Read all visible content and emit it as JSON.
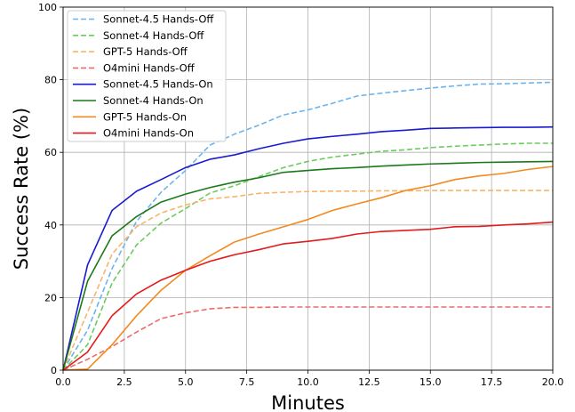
{
  "chart_data": {
    "type": "line",
    "xlabel": "Minutes",
    "ylabel": "Success Rate (%)",
    "xlim": [
      0,
      20
    ],
    "ylim": [
      0,
      100
    ],
    "xticks": [
      0,
      2.5,
      5,
      7.5,
      10,
      12.5,
      15,
      17.5,
      20
    ],
    "xtick_labels": [
      "0.0",
      "2.5",
      "5.0",
      "7.5",
      "10.0",
      "12.5",
      "15.0",
      "17.5",
      "20.0"
    ],
    "yticks": [
      0,
      20,
      40,
      60,
      80,
      100
    ],
    "ytick_labels": [
      "0",
      "20",
      "40",
      "60",
      "80",
      "100"
    ],
    "grid": true,
    "legend_position": "top-left",
    "x": [
      0,
      1,
      2,
      3,
      4,
      5,
      6,
      7,
      8,
      9,
      10,
      11,
      12,
      13,
      14,
      15,
      16,
      17,
      18,
      19,
      20
    ],
    "series": [
      {
        "name": "Sonnet-4.5 Hands-Off",
        "color": "#6cb4ee",
        "dash": true,
        "values": [
          0,
          11,
          28,
          41,
          49,
          55,
          62,
          65,
          67.5,
          70.3,
          71.7,
          73.5,
          75.5,
          76.3,
          77,
          77.7,
          78.3,
          78.8,
          78.9,
          79.1,
          79.3
        ]
      },
      {
        "name": "Sonnet-4 Hands-Off",
        "color": "#6ccb5f",
        "dash": true,
        "values": [
          0,
          7,
          24,
          34.5,
          40.5,
          44.5,
          48.8,
          50.8,
          53.3,
          55.8,
          57.5,
          58.7,
          59.5,
          60.3,
          60.7,
          61.3,
          61.7,
          62,
          62.3,
          62.5,
          62.5
        ]
      },
      {
        "name": "GPT-5 Hands-Off",
        "color": "#f7b56a",
        "dash": true,
        "values": [
          0,
          16,
          32,
          39.5,
          43.3,
          45.5,
          47.2,
          47.8,
          48.7,
          49,
          49.2,
          49.3,
          49.3,
          49.4,
          49.4,
          49.5,
          49.5,
          49.5,
          49.5,
          49.5,
          49.5
        ]
      },
      {
        "name": "O4mini Hands-Off",
        "color": "#ec6b6b",
        "dash": true,
        "values": [
          0,
          3,
          6.5,
          10.5,
          14.2,
          15.8,
          16.9,
          17.3,
          17.3,
          17.4,
          17.4,
          17.4,
          17.4,
          17.4,
          17.4,
          17.4,
          17.4,
          17.4,
          17.4,
          17.4,
          17.4
        ]
      },
      {
        "name": "Sonnet-4.5 Hands-On",
        "color": "#1a1ad0",
        "dash": false,
        "values": [
          0,
          29,
          44,
          49.3,
          52.5,
          55.8,
          58.1,
          59.3,
          61,
          62.5,
          63.7,
          64.4,
          65,
          65.7,
          66.1,
          66.6,
          66.7,
          66.8,
          66.9,
          66.9,
          67
        ]
      },
      {
        "name": "Sonnet-4 Hands-On",
        "color": "#1a7a1a",
        "dash": false,
        "values": [
          0,
          24.5,
          37,
          42.3,
          46.3,
          48.5,
          50.3,
          51.8,
          53,
          54.5,
          55,
          55.5,
          55.8,
          56.2,
          56.5,
          56.8,
          57,
          57.2,
          57.3,
          57.4,
          57.5
        ]
      },
      {
        "name": "GPT-5 Hands-On",
        "color": "#f28a1f",
        "dash": false,
        "values": [
          0,
          0.3,
          7,
          15,
          22,
          27.5,
          31.5,
          35.3,
          37.5,
          39.5,
          41.5,
          44,
          45.8,
          47.5,
          49.5,
          50.8,
          52.5,
          53.5,
          54.2,
          55.3,
          56.1
        ]
      },
      {
        "name": "O4mini Hands-On",
        "color": "#e41a1c",
        "dash": false,
        "values": [
          0,
          5,
          15,
          21,
          24.8,
          27.5,
          30,
          31.8,
          33.2,
          34.8,
          35.5,
          36.3,
          37.5,
          38.2,
          38.5,
          38.8,
          39.5,
          39.6,
          40,
          40.3,
          40.8
        ]
      }
    ]
  }
}
